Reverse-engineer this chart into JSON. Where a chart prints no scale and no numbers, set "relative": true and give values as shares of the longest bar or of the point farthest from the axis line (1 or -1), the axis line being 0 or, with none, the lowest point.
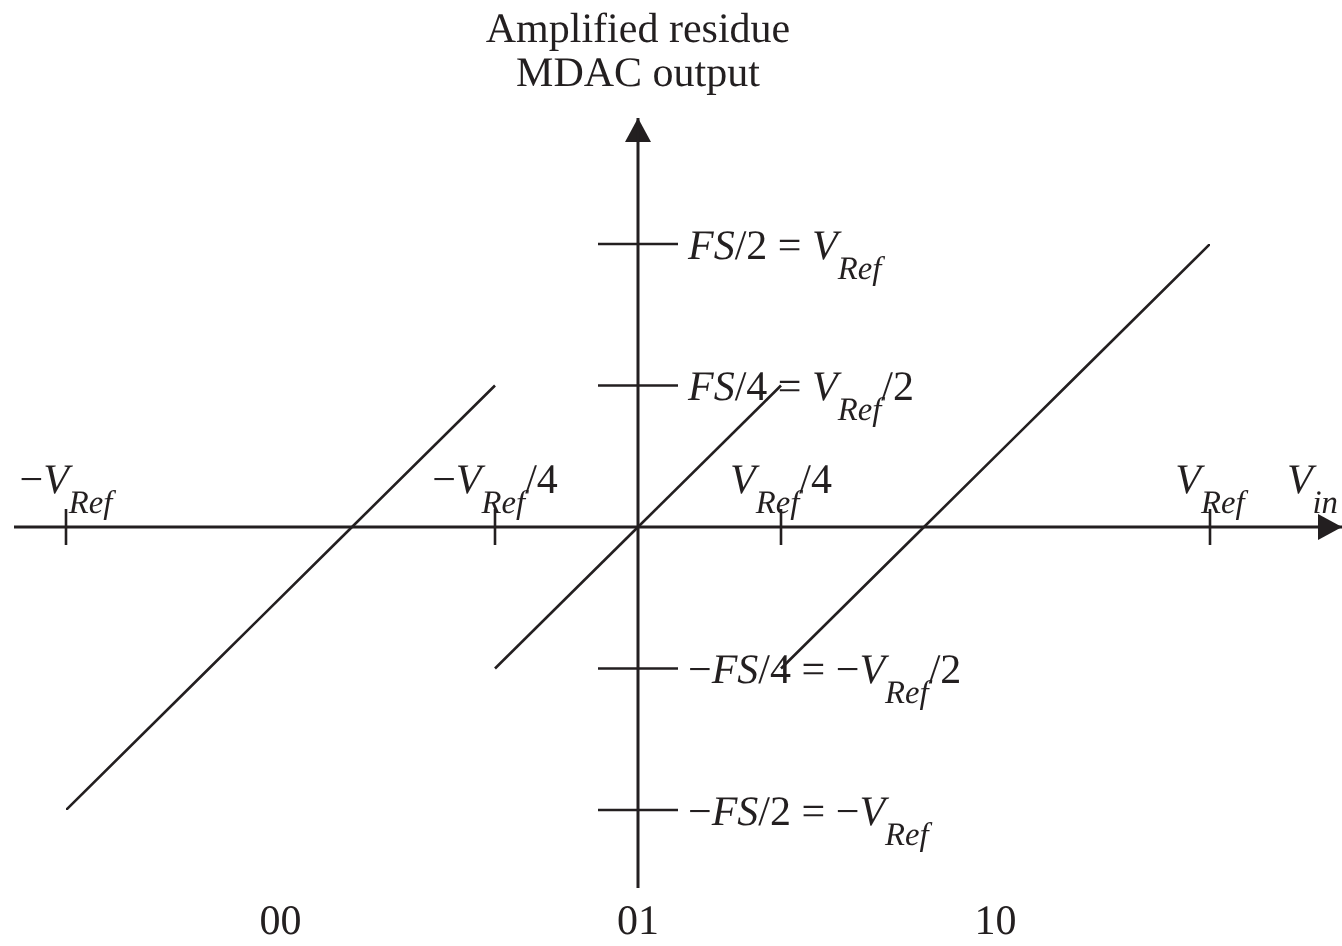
{
  "chart_data": {
    "type": "line",
    "relative": true,
    "xlabel": "V$_{in}$",
    "ylabel": "Amplified residue\nMDAC output",
    "categories": [
      "−V$_{Ref}$",
      null,
      null,
      "−V$_{Ref}$/4",
      null,
      "V$_{Ref}$/4",
      null,
      null,
      "V$_{Ref}$"
    ],
    "series": [
      {
        "color": "#231f20",
        "values": [
          -1,
          -0.5,
          0,
          0.5,
          null,
          null,
          null,
          null,
          null
        ]
      },
      {
        "color": "#231f20",
        "values": [
          null,
          null,
          null,
          -0.5,
          0,
          0.5,
          null,
          null,
          null
        ]
      },
      {
        "color": "#231f20",
        "values": [
          null,
          null,
          null,
          null,
          null,
          -0.5,
          0,
          0.5,
          1
        ]
      }
    ],
    "marker": "none",
    "line_style": "solid",
    "annotations": [
      "FS/2 = V$_{Ref}$",
      "FS/4 = V$_{Ref}$/2",
      "−FS/4 = −V$_{Ref}$/2",
      "−FS/2 = −V$_{Ref}$",
      "00",
      "01",
      "10"
    ]
  }
}
